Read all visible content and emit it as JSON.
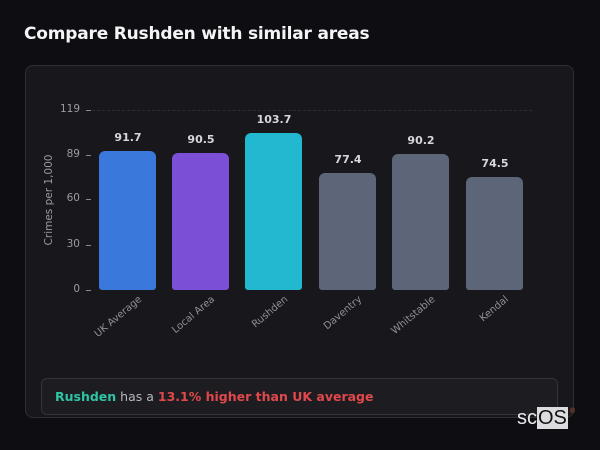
{
  "title": "Compare Rushden with similar areas",
  "chart_data": {
    "type": "bar",
    "title": "Compare Rushden with similar areas",
    "xlabel": "",
    "ylabel": "Crimes per 1,000",
    "ylim": [
      0,
      119
    ],
    "yticks": [
      0,
      30,
      60,
      89,
      119
    ],
    "grid": "dashed horizontal at top tick",
    "legend": "none",
    "categories": [
      "UK Average",
      "Local Area",
      "Rushden",
      "Daventry",
      "Whitstable",
      "Kendal"
    ],
    "values": [
      91.7,
      90.5,
      103.7,
      77.4,
      90.2,
      74.5
    ],
    "value_labels": [
      "91.7",
      "90.5",
      "103.7",
      "77.4",
      "90.2",
      "74.5"
    ],
    "colors": [
      "#3a78dc",
      "#7b4fd6",
      "#22b8d0",
      "#5c6678",
      "#5c6678",
      "#5c6678"
    ]
  },
  "summary": {
    "area": "Rushden",
    "middle": " has a ",
    "delta": "13.1% higher than UK average",
    "area_color": "#2ec4a6",
    "delta_color": "#e0484b"
  },
  "logo": {
    "prefix": "sc",
    "emph": "OS",
    "mark": "®"
  }
}
